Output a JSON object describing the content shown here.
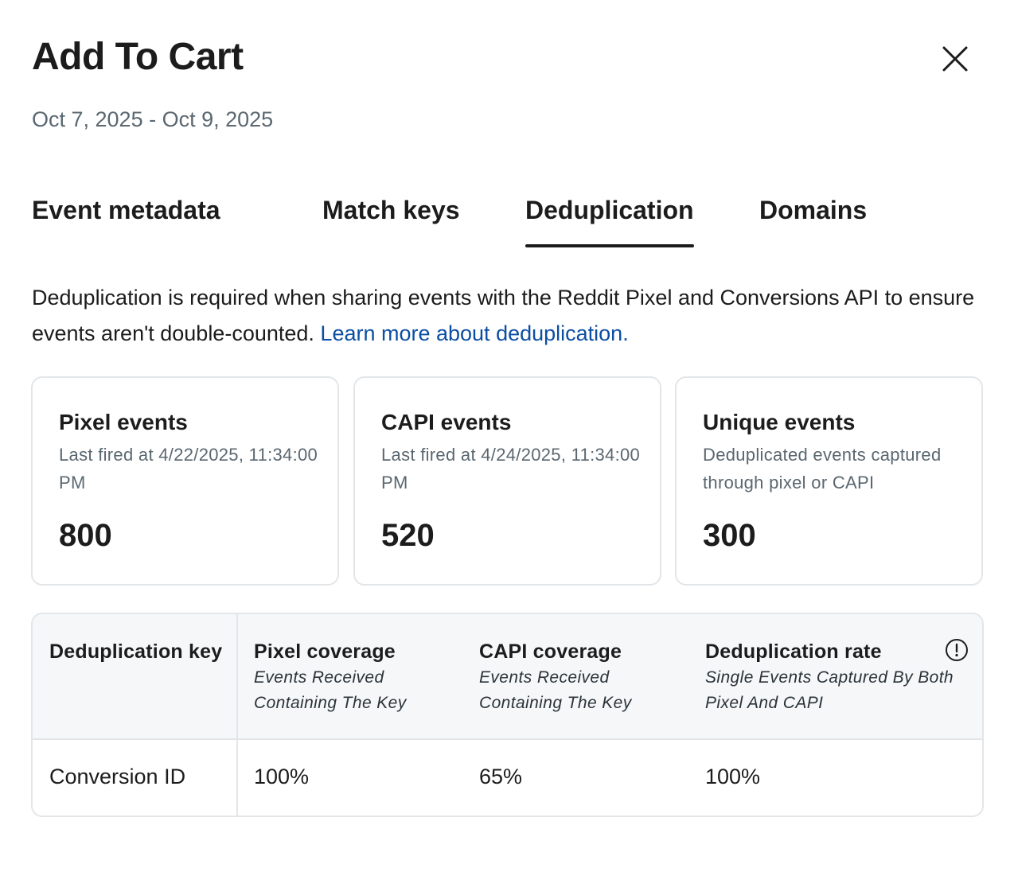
{
  "title": "Add To Cart",
  "date_range": "Oct 7, 2025 - Oct 9, 2025",
  "close_icon": "close-icon",
  "tabs": [
    {
      "label": "Event metadata",
      "active": false
    },
    {
      "label": "Match keys",
      "active": false
    },
    {
      "label": "Deduplication",
      "active": true
    },
    {
      "label": "Domains",
      "active": false
    }
  ],
  "description": {
    "text": "Deduplication is required when sharing events with the Reddit Pixel and Conversions API to ensure events aren't double-counted.",
    "link": "Learn more about deduplication."
  },
  "cards": [
    {
      "title": "Pixel events",
      "subtitle": "Last fired at 4/22/2025, 11:34:00 PM",
      "value": "800"
    },
    {
      "title": "CAPI events",
      "subtitle": "Last fired at 4/24/2025, 11:34:00 PM",
      "value": "520"
    },
    {
      "title": "Unique events",
      "subtitle": "Deduplicated events captured through pixel or CAPI",
      "value": "300"
    }
  ],
  "table": {
    "columns": [
      {
        "title": "Deduplication key",
        "subtitle": ""
      },
      {
        "title": "Pixel coverage",
        "subtitle": "Events Received Containing The Key"
      },
      {
        "title": "CAPI coverage",
        "subtitle": "Events Received Containing The Key"
      },
      {
        "title": "Deduplication rate",
        "subtitle": "Single Events Captured By Both Pixel And CAPI"
      }
    ],
    "info_icon": "info-icon",
    "rows": [
      [
        "Conversion ID",
        "100%",
        "65%",
        "100%"
      ]
    ]
  },
  "colors": {
    "link": "#0b4ea2",
    "muted_text": "#5a6770",
    "border": "#e3e6e9",
    "table_header_bg": "#f5f7f9"
  }
}
